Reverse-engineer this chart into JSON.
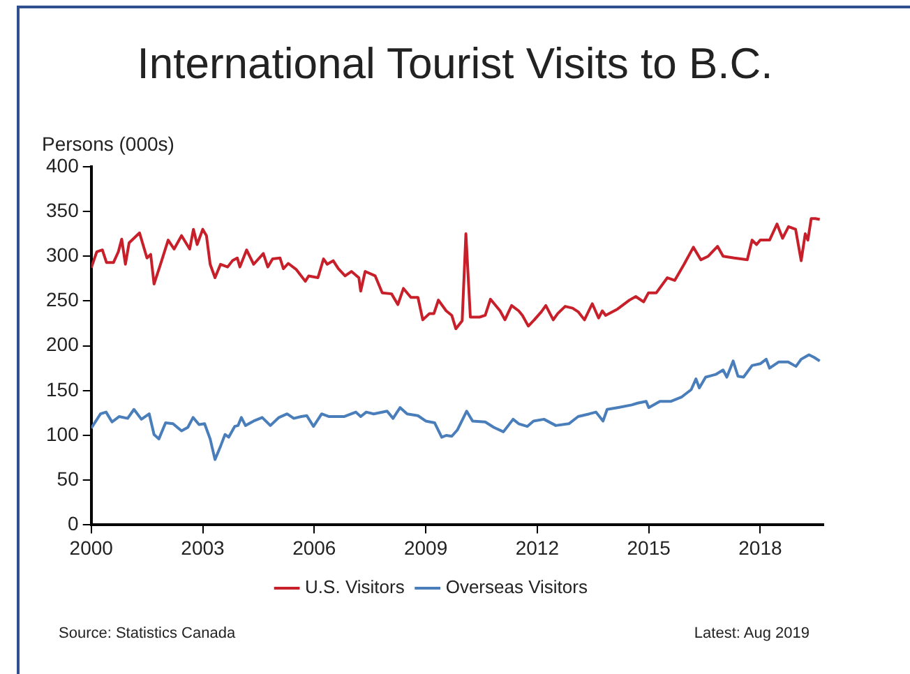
{
  "chart_data": {
    "type": "line",
    "title": "International Tourist Visits to B.C.",
    "ylabel": "Persons (000s)",
    "xlim": [
      2000,
      2019.7
    ],
    "xticks": [
      2000,
      2003,
      2006,
      2009,
      2012,
      2015,
      2018
    ],
    "ylim": [
      0,
      400
    ],
    "yticks": [
      0,
      50,
      100,
      150,
      200,
      250,
      300,
      350,
      400
    ],
    "grid": false,
    "legend": "bottom",
    "marker": "none",
    "line_style": "solid",
    "series": [
      {
        "name": "U.S. Visitors",
        "color": "#c8202a",
        "x": [
          2000.0,
          2000.15,
          2000.3,
          2000.41,
          2000.6,
          2000.73,
          2000.82,
          2000.92,
          2001.02,
          2001.3,
          2001.5,
          2001.6,
          2001.69,
          2001.88,
          2002.07,
          2002.23,
          2002.43,
          2002.65,
          2002.75,
          2002.85,
          2003.0,
          2003.1,
          2003.2,
          2003.33,
          2003.48,
          2003.67,
          2003.8,
          2003.93,
          2004.0,
          2004.18,
          2004.37,
          2004.63,
          2004.75,
          2004.88,
          2005.08,
          2005.17,
          2005.3,
          2005.52,
          2005.76,
          2005.85,
          2006.1,
          2006.25,
          2006.35,
          2006.51,
          2006.65,
          2006.83,
          2007.0,
          2007.2,
          2007.25,
          2007.37,
          2007.64,
          2007.83,
          2008.08,
          2008.25,
          2008.4,
          2008.6,
          2008.79,
          2008.92,
          2009.1,
          2009.22,
          2009.34,
          2009.55,
          2009.7,
          2009.81,
          2009.98,
          2010.08,
          2010.2,
          2010.45,
          2010.6,
          2010.74,
          2011.0,
          2011.13,
          2011.31,
          2011.5,
          2011.6,
          2011.76,
          2011.92,
          2012.11,
          2012.23,
          2012.43,
          2012.55,
          2012.75,
          2012.95,
          2013.1,
          2013.27,
          2013.48,
          2013.65,
          2013.75,
          2013.84,
          2014.16,
          2014.48,
          2014.65,
          2014.86,
          2014.99,
          2015.2,
          2015.5,
          2015.7,
          2015.95,
          2016.2,
          2016.4,
          2016.6,
          2016.85,
          2017.0,
          2017.3,
          2017.65,
          2017.78,
          2017.9,
          2018.0,
          2018.25,
          2018.45,
          2018.6,
          2018.76,
          2018.95,
          2019.1,
          2019.21,
          2019.28,
          2019.37,
          2019.48,
          2019.6
        ],
        "values": [
          287,
          305,
          307,
          293,
          293,
          305,
          319,
          291,
          315,
          326,
          298,
          302,
          269,
          293,
          318,
          308,
          323,
          308,
          330,
          313,
          330,
          323,
          291,
          276,
          291,
          288,
          295,
          298,
          288,
          307,
          291,
          303,
          288,
          297,
          298,
          286,
          292,
          285,
          272,
          278,
          276,
          297,
          291,
          295,
          286,
          278,
          283,
          276,
          261,
          283,
          278,
          259,
          258,
          246,
          264,
          254,
          254,
          229,
          236,
          236,
          251,
          239,
          234,
          219,
          228,
          325,
          232,
          232,
          234,
          252,
          239,
          229,
          245,
          239,
          234,
          222,
          229,
          238,
          245,
          229,
          236,
          244,
          242,
          238,
          229,
          247,
          231,
          239,
          234,
          241,
          251,
          255,
          249,
          259,
          259,
          276,
          273,
          291,
          310,
          296,
          300,
          311,
          300,
          298,
          296,
          318,
          313,
          318,
          318,
          336,
          320,
          333,
          330,
          295,
          325,
          318,
          342,
          342,
          341
        ]
      },
      {
        "name": "Overseas Visitors",
        "color": "#4a7ebb",
        "x": [
          2000.0,
          2000.25,
          2000.4,
          2000.56,
          2000.75,
          2000.98,
          2001.15,
          2001.35,
          2001.56,
          2001.69,
          2001.82,
          2002.0,
          2002.2,
          2002.43,
          2002.6,
          2002.74,
          2002.9,
          2003.05,
          2003.2,
          2003.33,
          2003.48,
          2003.6,
          2003.7,
          2003.86,
          2003.95,
          2004.04,
          2004.15,
          2004.37,
          2004.6,
          2004.82,
          2005.05,
          2005.27,
          2005.45,
          2005.65,
          2005.8,
          2005.98,
          2006.2,
          2006.4,
          2006.8,
          2007.12,
          2007.25,
          2007.4,
          2007.6,
          2007.96,
          2008.12,
          2008.31,
          2008.5,
          2008.79,
          2009.0,
          2009.24,
          2009.43,
          2009.55,
          2009.7,
          2009.85,
          2010.1,
          2010.26,
          2010.6,
          2010.83,
          2011.09,
          2011.35,
          2011.5,
          2011.73,
          2011.9,
          2012.18,
          2012.5,
          2012.85,
          2013.1,
          2013.4,
          2013.58,
          2013.77,
          2013.88,
          2014.16,
          2014.54,
          2014.7,
          2014.93,
          2015.0,
          2015.3,
          2015.6,
          2015.89,
          2016.14,
          2016.27,
          2016.36,
          2016.53,
          2016.8,
          2017.0,
          2017.1,
          2017.27,
          2017.4,
          2017.55,
          2017.78,
          2018.0,
          2018.16,
          2018.25,
          2018.5,
          2018.75,
          2018.96,
          2019.1,
          2019.31,
          2019.45,
          2019.6
        ],
        "values": [
          108,
          124,
          126,
          115,
          121,
          119,
          129,
          118,
          124,
          101,
          96,
          114,
          113,
          105,
          109,
          120,
          112,
          113,
          96,
          73,
          88,
          101,
          98,
          110,
          111,
          120,
          111,
          116,
          120,
          111,
          120,
          124,
          119,
          121,
          122,
          110,
          124,
          121,
          121,
          126,
          121,
          126,
          124,
          127,
          119,
          131,
          124,
          122,
          116,
          114,
          98,
          100,
          99,
          106,
          127,
          116,
          115,
          109,
          104,
          118,
          113,
          110,
          116,
          118,
          111,
          113,
          121,
          124,
          126,
          116,
          129,
          131,
          134,
          136,
          138,
          131,
          138,
          138,
          143,
          151,
          163,
          153,
          165,
          168,
          173,
          165,
          183,
          166,
          165,
          178,
          180,
          185,
          175,
          182,
          182,
          177,
          185,
          190,
          187,
          183
        ]
      }
    ],
    "annotations": [
      "Source: Statistics Canada",
      "Latest: Aug 2019"
    ]
  }
}
